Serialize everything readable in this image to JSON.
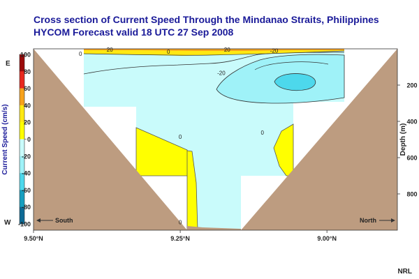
{
  "chart_data": {
    "type": "heatmap",
    "title": "Cross section of Current Speed Through the Mindanao Straits, Philippines",
    "subtitle": "HYCOM Forecast valid 18 UTC 27 Sep 2008",
    "x_ticks": [
      {
        "value": 9.5,
        "label": "9.50°N"
      },
      {
        "value": 9.25,
        "label": "9.25°N"
      },
      {
        "value": 9.0,
        "label": "9.00°N"
      }
    ],
    "xlim": [
      9.5,
      8.88
    ],
    "ylabel": "Depth (m)",
    "ylim": [
      0,
      1000
    ],
    "y_ticks": [
      200,
      400,
      600,
      800
    ],
    "colorbar": {
      "label": "Current Speed (cm/s)",
      "top_label": "E",
      "bottom_label": "W",
      "range": [
        -100,
        100
      ],
      "ticks": [
        100,
        80,
        60,
        40,
        20,
        0,
        -20,
        -40,
        -60,
        -80,
        -100
      ],
      "colors": [
        "#9b0a0a",
        "#e8281e",
        "#f7a21b",
        "#ffe812",
        "#ffff00",
        "#c9fbfb",
        "#9ff2f8",
        "#4dd8ec",
        "#169fc0",
        "#0d6a95"
      ]
    },
    "direction_labels": {
      "left": "South",
      "right": "North"
    },
    "contour_labels": [
      {
        "x": 9.37,
        "y": 4,
        "text": "20"
      },
      {
        "x": 9.17,
        "y": 4,
        "text": "20"
      },
      {
        "x": 9.27,
        "y": 15,
        "text": "0"
      },
      {
        "x": 9.42,
        "y": 27,
        "text": "0"
      },
      {
        "x": 9.09,
        "y": 10,
        "text": "-20"
      },
      {
        "x": 9.18,
        "y": 133,
        "text": "-20"
      },
      {
        "x": 9.25,
        "y": 485,
        "text": "0"
      },
      {
        "x": 9.11,
        "y": 462,
        "text": "0"
      },
      {
        "x": 9.25,
        "y": 955,
        "text": "0"
      }
    ],
    "regions": [
      {
        "band": "10 to 20 cm/s",
        "location": "thin surface layer 0-15 m"
      },
      {
        "band": "0 to 20 cm/s",
        "location": "south side 350-650 m; central channel 500-1000 m; north side 350-580 m"
      },
      {
        "band": "-20 to 0 cm/s",
        "location": "most of the channel"
      },
      {
        "band": "-40 to -20 cm/s",
        "location": "northern core 30-210 m"
      },
      {
        "band": "below -40 cm/s",
        "location": "small patch near 9.07°N, 130-180 m"
      }
    ]
  },
  "credit": "NRL"
}
